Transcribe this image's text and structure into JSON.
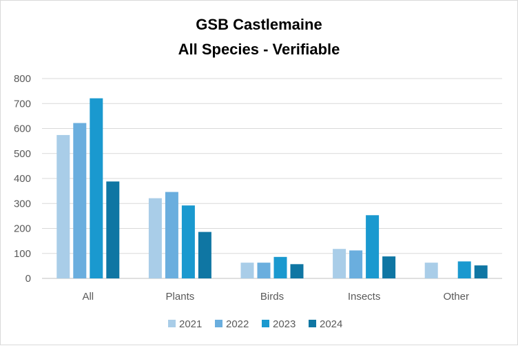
{
  "chart_data": {
    "type": "bar",
    "title": "GSB Castlemaine",
    "subtitle": "All Species - Verifiable",
    "xlabel": "",
    "ylabel": "",
    "ylim": [
      0,
      800
    ],
    "yticks": [
      "0",
      "100",
      "200",
      "300",
      "400",
      "500",
      "600",
      "700",
      "800"
    ],
    "grid": true,
    "legend_position": "bottom",
    "categories": [
      "All",
      "Plants",
      "Birds",
      "Insects",
      "Other"
    ],
    "series": [
      {
        "name": "2021",
        "color": "#a9cde8",
        "values": [
          574,
          321,
          63,
          118,
          63
        ]
      },
      {
        "name": "2022",
        "color": "#6aaede",
        "values": [
          622,
          346,
          63,
          112,
          0
        ]
      },
      {
        "name": "2023",
        "color": "#1a99cf",
        "values": [
          721,
          292,
          86,
          253,
          68
        ]
      },
      {
        "name": "2024",
        "color": "#0f76a3",
        "values": [
          388,
          186,
          57,
          88,
          52
        ]
      }
    ]
  }
}
